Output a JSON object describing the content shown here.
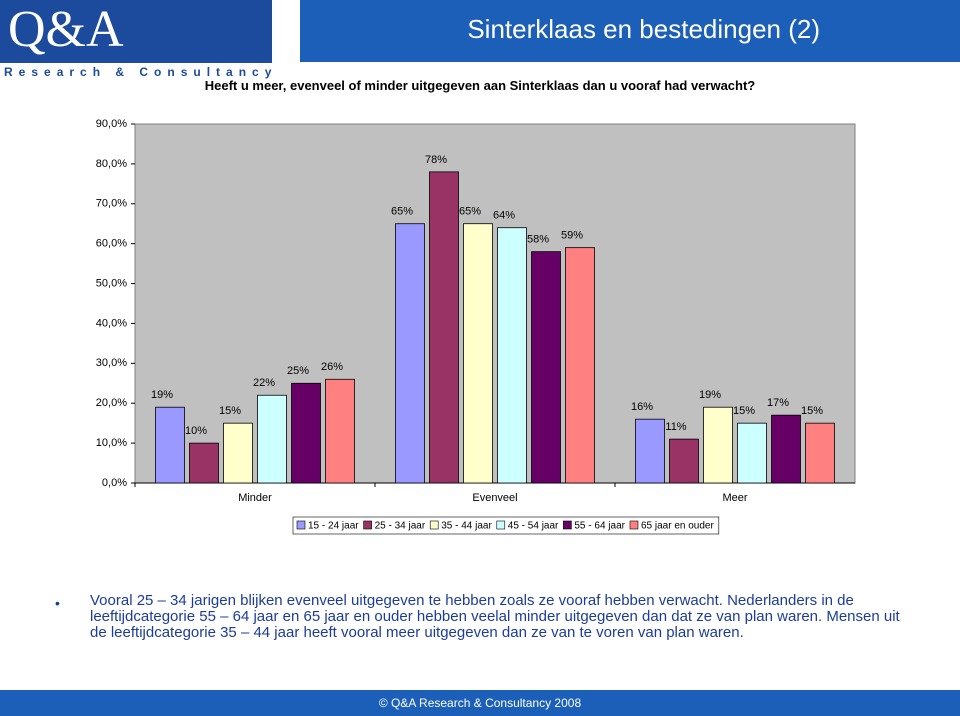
{
  "header": {
    "logo": "Q&A",
    "logo_sub": "Research & Consultancy",
    "title": "Sinterklaas en bestedingen (2)"
  },
  "chart_data": {
    "type": "bar",
    "title": "Heeft u meer, evenveel of minder uitgegeven aan Sinterklaas dan u vooraf had verwacht?",
    "categories": [
      "Minder",
      "Evenveel",
      "Meer"
    ],
    "series": [
      {
        "name": "15 - 24 jaar",
        "color": "#9999ff",
        "values": [
          19,
          65,
          16
        ],
        "value_labels": [
          "19%",
          "65%",
          "16%"
        ]
      },
      {
        "name": "25 - 34 jaar",
        "color": "#993366",
        "values": [
          10,
          78,
          11
        ],
        "value_labels": [
          "10%",
          "78%",
          "11%"
        ]
      },
      {
        "name": "35 - 44 jaar",
        "color": "#ffffcc",
        "values": [
          15,
          65,
          19
        ],
        "value_labels": [
          "15%",
          "65%",
          "19%"
        ]
      },
      {
        "name": "45 - 54 jaar",
        "color": "#ccffff",
        "values": [
          22,
          64,
          15
        ],
        "value_labels": [
          "22%",
          "64%",
          "15%"
        ]
      },
      {
        "name": "55 - 64 jaar",
        "color": "#660066",
        "values": [
          25,
          58,
          17
        ],
        "value_labels": [
          "25%",
          "58%",
          "17%"
        ]
      },
      {
        "name": "65 jaar en ouder",
        "color": "#ff8080",
        "values": [
          26,
          59,
          15
        ],
        "value_labels": [
          "26%",
          "59%",
          "15%"
        ]
      }
    ],
    "ylim": [
      0,
      90
    ],
    "yticks": [
      {
        "value": 0,
        "label": "0,0%"
      },
      {
        "value": 10,
        "label": "10,0%"
      },
      {
        "value": 20,
        "label": "20,0%"
      },
      {
        "value": 30,
        "label": "30,0%"
      },
      {
        "value": 40,
        "label": "40,0%"
      },
      {
        "value": 50,
        "label": "50,0%"
      },
      {
        "value": 60,
        "label": "60,0%"
      },
      {
        "value": 70,
        "label": "70,0%"
      },
      {
        "value": 80,
        "label": "80,0%"
      },
      {
        "value": 90,
        "label": "90,0%"
      }
    ],
    "grid": false,
    "legend": "bottom"
  },
  "notes": [
    "Vooral 25 – 34 jarigen blijken evenveel uitgegeven te hebben zoals ze vooraf hebben verwacht. Nederlanders in de leeftijdcategorie 55 – 64 jaar en 65 jaar en ouder hebben veelal minder uitgegeven dan dat ze van plan waren. Mensen uit de leeftijdcategorie 35 – 44 jaar heeft vooral meer uitgegeven dan ze van te voren van plan waren."
  ],
  "footer": "© Q&A Research & Consultancy 2008"
}
